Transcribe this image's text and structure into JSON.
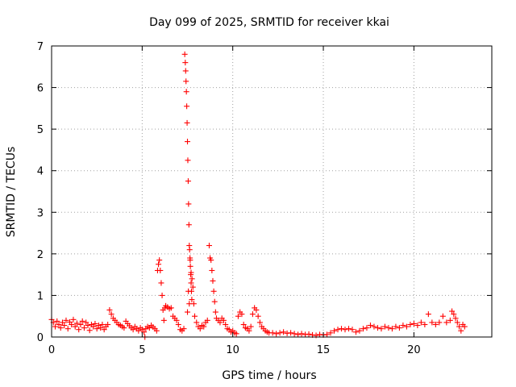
{
  "chart_data": {
    "type": "scatter",
    "title": "Day 099 of 2025, SRMTID for receiver kkai",
    "xlabel": "GPS time / hours",
    "ylabel": "SRMTID / TECUs",
    "xlim": [
      0,
      24.3
    ],
    "ylim": [
      0,
      7
    ],
    "xticks": [
      0,
      5,
      10,
      15,
      20
    ],
    "yticks": [
      0,
      1,
      2,
      3,
      4,
      5,
      6,
      7
    ],
    "grid": true,
    "marker": "+",
    "color": "#ff0000",
    "series": [
      {
        "name": "SRMTID",
        "points": [
          [
            0.0,
            0.42
          ],
          [
            0.1,
            0.35
          ],
          [
            0.2,
            0.25
          ],
          [
            0.3,
            0.38
          ],
          [
            0.4,
            0.3
          ],
          [
            0.5,
            0.22
          ],
          [
            0.6,
            0.35
          ],
          [
            0.7,
            0.28
          ],
          [
            0.8,
            0.4
          ],
          [
            0.9,
            0.2
          ],
          [
            1.0,
            0.36
          ],
          [
            1.1,
            0.3
          ],
          [
            1.2,
            0.42
          ],
          [
            1.3,
            0.25
          ],
          [
            1.4,
            0.33
          ],
          [
            1.5,
            0.18
          ],
          [
            1.6,
            0.3
          ],
          [
            1.7,
            0.38
          ],
          [
            1.8,
            0.22
          ],
          [
            1.9,
            0.35
          ],
          [
            2.0,
            0.28
          ],
          [
            2.1,
            0.16
          ],
          [
            2.2,
            0.3
          ],
          [
            2.3,
            0.25
          ],
          [
            2.4,
            0.32
          ],
          [
            2.5,
            0.2
          ],
          [
            2.6,
            0.28
          ],
          [
            2.7,
            0.22
          ],
          [
            2.8,
            0.3
          ],
          [
            2.9,
            0.18
          ],
          [
            3.0,
            0.25
          ],
          [
            3.1,
            0.3
          ],
          [
            3.2,
            0.65
          ],
          [
            3.3,
            0.55
          ],
          [
            3.4,
            0.45
          ],
          [
            3.5,
            0.4
          ],
          [
            3.6,
            0.35
          ],
          [
            3.7,
            0.3
          ],
          [
            3.8,
            0.28
          ],
          [
            3.9,
            0.25
          ],
          [
            4.0,
            0.22
          ],
          [
            4.1,
            0.38
          ],
          [
            4.2,
            0.32
          ],
          [
            4.3,
            0.27
          ],
          [
            4.4,
            0.22
          ],
          [
            4.5,
            0.18
          ],
          [
            4.6,
            0.25
          ],
          [
            4.7,
            0.2
          ],
          [
            4.8,
            0.15
          ],
          [
            4.9,
            0.22
          ],
          [
            5.0,
            0.18
          ],
          [
            5.1,
            0.12
          ],
          [
            5.15,
            0.0
          ],
          [
            5.2,
            0.2
          ],
          [
            5.3,
            0.25
          ],
          [
            5.4,
            0.22
          ],
          [
            5.5,
            0.28
          ],
          [
            5.6,
            0.24
          ],
          [
            5.7,
            0.2
          ],
          [
            5.8,
            0.15
          ],
          [
            5.85,
            1.6
          ],
          [
            5.9,
            1.75
          ],
          [
            5.95,
            1.85
          ],
          [
            6.0,
            1.6
          ],
          [
            6.05,
            1.3
          ],
          [
            6.1,
            1.0
          ],
          [
            6.15,
            0.65
          ],
          [
            6.2,
            0.4
          ],
          [
            6.25,
            0.7
          ],
          [
            6.3,
            0.75
          ],
          [
            6.4,
            0.72
          ],
          [
            6.5,
            0.68
          ],
          [
            6.6,
            0.7
          ],
          [
            6.7,
            0.5
          ],
          [
            6.8,
            0.45
          ],
          [
            6.9,
            0.4
          ],
          [
            7.0,
            0.3
          ],
          [
            7.1,
            0.18
          ],
          [
            7.2,
            0.15
          ],
          [
            7.3,
            0.2
          ],
          [
            7.35,
            6.8
          ],
          [
            7.38,
            6.6
          ],
          [
            7.4,
            6.4
          ],
          [
            7.42,
            6.15
          ],
          [
            7.44,
            5.9
          ],
          [
            7.46,
            5.55
          ],
          [
            7.48,
            5.15
          ],
          [
            7.5,
            4.7
          ],
          [
            7.52,
            4.25
          ],
          [
            7.54,
            3.75
          ],
          [
            7.56,
            3.2
          ],
          [
            7.58,
            2.7
          ],
          [
            7.6,
            2.2
          ],
          [
            7.62,
            2.1
          ],
          [
            7.64,
            1.9
          ],
          [
            7.66,
            1.7
          ],
          [
            7.68,
            1.5
          ],
          [
            7.7,
            1.3
          ],
          [
            7.72,
            1.1
          ],
          [
            7.74,
            0.9
          ],
          [
            7.5,
            0.6
          ],
          [
            7.55,
            1.1
          ],
          [
            7.6,
            0.8
          ],
          [
            7.65,
            1.85
          ],
          [
            7.7,
            1.55
          ],
          [
            7.75,
            1.4
          ],
          [
            7.8,
            1.2
          ],
          [
            7.85,
            0.8
          ],
          [
            7.9,
            0.5
          ],
          [
            8.0,
            0.35
          ],
          [
            8.1,
            0.25
          ],
          [
            8.2,
            0.2
          ],
          [
            8.3,
            0.28
          ],
          [
            8.4,
            0.25
          ],
          [
            8.5,
            0.35
          ],
          [
            8.6,
            0.4
          ],
          [
            8.7,
            2.2
          ],
          [
            8.75,
            1.9
          ],
          [
            8.8,
            1.85
          ],
          [
            8.85,
            1.6
          ],
          [
            8.9,
            1.35
          ],
          [
            8.95,
            1.1
          ],
          [
            9.0,
            0.85
          ],
          [
            9.05,
            0.6
          ],
          [
            9.1,
            0.45
          ],
          [
            9.2,
            0.4
          ],
          [
            9.3,
            0.35
          ],
          [
            9.4,
            0.45
          ],
          [
            9.5,
            0.4
          ],
          [
            9.6,
            0.3
          ],
          [
            9.7,
            0.2
          ],
          [
            9.8,
            0.18
          ],
          [
            9.9,
            0.12
          ],
          [
            10.0,
            0.15
          ],
          [
            10.1,
            0.1
          ],
          [
            10.2,
            0.08
          ],
          [
            10.3,
            0.5
          ],
          [
            10.4,
            0.6
          ],
          [
            10.5,
            0.55
          ],
          [
            10.6,
            0.3
          ],
          [
            10.7,
            0.22
          ],
          [
            10.8,
            0.2
          ],
          [
            10.9,
            0.15
          ],
          [
            11.0,
            0.25
          ],
          [
            11.1,
            0.55
          ],
          [
            11.2,
            0.7
          ],
          [
            11.3,
            0.65
          ],
          [
            11.4,
            0.5
          ],
          [
            11.5,
            0.35
          ],
          [
            11.6,
            0.25
          ],
          [
            11.7,
            0.2
          ],
          [
            11.8,
            0.15
          ],
          [
            11.9,
            0.12
          ],
          [
            12.0,
            0.1
          ],
          [
            12.2,
            0.1
          ],
          [
            12.4,
            0.08
          ],
          [
            12.6,
            0.1
          ],
          [
            12.8,
            0.12
          ],
          [
            13.0,
            0.09
          ],
          [
            13.2,
            0.1
          ],
          [
            13.4,
            0.08
          ],
          [
            13.6,
            0.06
          ],
          [
            13.8,
            0.08
          ],
          [
            14.0,
            0.06
          ],
          [
            14.2,
            0.07
          ],
          [
            14.4,
            0.05
          ],
          [
            14.6,
            0.04
          ],
          [
            14.8,
            0.06
          ],
          [
            15.0,
            0.05
          ],
          [
            15.2,
            0.06
          ],
          [
            15.4,
            0.1
          ],
          [
            15.6,
            0.15
          ],
          [
            15.8,
            0.18
          ],
          [
            16.0,
            0.2
          ],
          [
            16.2,
            0.18
          ],
          [
            16.4,
            0.2
          ],
          [
            16.6,
            0.18
          ],
          [
            16.8,
            0.12
          ],
          [
            17.0,
            0.15
          ],
          [
            17.2,
            0.2
          ],
          [
            17.4,
            0.22
          ],
          [
            17.6,
            0.28
          ],
          [
            17.8,
            0.25
          ],
          [
            18.0,
            0.22
          ],
          [
            18.2,
            0.2
          ],
          [
            18.4,
            0.25
          ],
          [
            18.6,
            0.22
          ],
          [
            18.8,
            0.2
          ],
          [
            19.0,
            0.25
          ],
          [
            19.2,
            0.22
          ],
          [
            19.4,
            0.28
          ],
          [
            19.6,
            0.25
          ],
          [
            19.8,
            0.3
          ],
          [
            20.0,
            0.32
          ],
          [
            20.2,
            0.28
          ],
          [
            20.4,
            0.35
          ],
          [
            20.6,
            0.3
          ],
          [
            20.8,
            0.55
          ],
          [
            21.0,
            0.35
          ],
          [
            21.2,
            0.3
          ],
          [
            21.4,
            0.35
          ],
          [
            21.6,
            0.5
          ],
          [
            21.8,
            0.35
          ],
          [
            22.0,
            0.4
          ],
          [
            22.1,
            0.62
          ],
          [
            22.2,
            0.55
          ],
          [
            22.3,
            0.45
          ],
          [
            22.4,
            0.35
          ],
          [
            22.5,
            0.25
          ],
          [
            22.6,
            0.15
          ],
          [
            22.7,
            0.3
          ],
          [
            22.8,
            0.25
          ]
        ]
      }
    ]
  }
}
